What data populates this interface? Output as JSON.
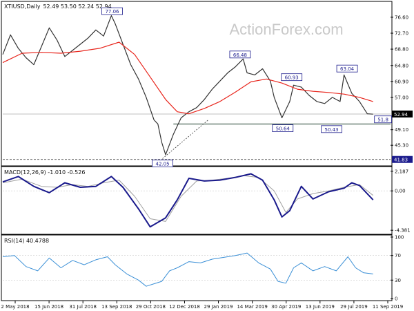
{
  "chart_data": [
    {
      "type": "line",
      "panel": "price",
      "title": "XTIUSD,Daily",
      "ohlc_header": "52.49 53.50 52.24 52.94",
      "ylim": [
        40.6,
        79.8
      ],
      "y_ticks": [
        {
          "value": 76.6,
          "label": "76.60"
        },
        {
          "value": 72.7,
          "label": "72.70"
        },
        {
          "value": 68.8,
          "label": "68.80"
        },
        {
          "value": 64.8,
          "label": "64.80"
        },
        {
          "value": 60.9,
          "label": "60.90"
        },
        {
          "value": 57.0,
          "label": "57.00"
        },
        {
          "value": 49.1,
          "label": "49.10"
        },
        {
          "value": 45.3,
          "label": "45.30"
        }
      ],
      "current_price": {
        "value": 52.94,
        "label": "52.94"
      },
      "support_level": {
        "value": 41.83,
        "label": "41.83"
      },
      "annotations": [
        {
          "label": "77.06",
          "x": 0.282,
          "y": 77.06
        },
        {
          "label": "66.48",
          "x": 0.612,
          "y": 66.48
        },
        {
          "label": "60.93",
          "x": 0.745,
          "y": 60.93
        },
        {
          "label": "63.04",
          "x": 0.888,
          "y": 63.04
        },
        {
          "label": "50.64",
          "x": 0.722,
          "y": 50.64
        },
        {
          "label": "50.43",
          "x": 0.848,
          "y": 50.43
        },
        {
          "label": "42.05",
          "x": 0.412,
          "y": 42.05
        },
        {
          "label": "51.8",
          "x": 0.955,
          "y": 51.8
        }
      ],
      "series": [
        {
          "kind": "price",
          "color": "#333333",
          "x": [
            0.0,
            0.02,
            0.04,
            0.06,
            0.08,
            0.1,
            0.12,
            0.14,
            0.16,
            0.18,
            0.2,
            0.22,
            0.24,
            0.26,
            0.28,
            0.29,
            0.31,
            0.33,
            0.35,
            0.37,
            0.39,
            0.4,
            0.41,
            0.42,
            0.44,
            0.46,
            0.48,
            0.5,
            0.52,
            0.54,
            0.56,
            0.58,
            0.6,
            0.62,
            0.63,
            0.65,
            0.67,
            0.69,
            0.7,
            0.72,
            0.74,
            0.75,
            0.77,
            0.79,
            0.81,
            0.83,
            0.85,
            0.87,
            0.88,
            0.9,
            0.92,
            0.94,
            0.955
          ],
          "values": [
            67.5,
            72.3,
            69.0,
            66.7,
            65.0,
            69.5,
            74.0,
            71.0,
            67.0,
            68.5,
            70.0,
            71.5,
            73.5,
            72.0,
            77.0,
            75.0,
            70.0,
            65.0,
            61.5,
            57.0,
            51.5,
            50.5,
            46.0,
            43.0,
            48.0,
            52.0,
            53.5,
            54.5,
            56.5,
            59.0,
            61.0,
            63.0,
            64.5,
            66.4,
            63.0,
            62.5,
            64.0,
            61.0,
            57.0,
            52.0,
            56.0,
            60.0,
            59.5,
            57.5,
            56.0,
            55.5,
            57.0,
            56.0,
            62.5,
            58.0,
            56.0,
            53.0,
            52.9
          ]
        },
        {
          "kind": "moving-average",
          "color": "#e8251c",
          "x": [
            0.0,
            0.05,
            0.1,
            0.15,
            0.2,
            0.25,
            0.3,
            0.34,
            0.38,
            0.42,
            0.45,
            0.48,
            0.52,
            0.56,
            0.6,
            0.64,
            0.68,
            0.72,
            0.76,
            0.8,
            0.84,
            0.88,
            0.92,
            0.955
          ],
          "values": [
            65.5,
            67.8,
            68.0,
            67.8,
            68.3,
            69.0,
            70.5,
            67.5,
            62.0,
            56.5,
            53.5,
            53.0,
            54.3,
            56.0,
            58.3,
            60.8,
            61.5,
            60.5,
            59.0,
            58.5,
            58.2,
            57.8,
            57.0,
            56.0
          ]
        }
      ]
    },
    {
      "type": "line",
      "panel": "macd",
      "title": "MACD(12,26,9) -1.010 -0.526",
      "ylim": [
        -4.6,
        2.4
      ],
      "y_ticks": [
        {
          "value": 2.187,
          "label": "2.187"
        },
        {
          "value": 0.0,
          "label": "0.00"
        },
        {
          "value": -4.381,
          "label": "-4.381"
        }
      ],
      "series": [
        {
          "kind": "macd",
          "color": "#1a1a8c",
          "x": [
            0.0,
            0.04,
            0.08,
            0.12,
            0.16,
            0.2,
            0.24,
            0.28,
            0.31,
            0.35,
            0.38,
            0.42,
            0.45,
            0.48,
            0.52,
            0.56,
            0.6,
            0.64,
            0.67,
            0.7,
            0.72,
            0.74,
            0.77,
            0.8,
            0.84,
            0.88,
            0.9,
            0.92,
            0.955
          ],
          "values": [
            1.0,
            1.6,
            0.5,
            -0.2,
            0.9,
            0.4,
            0.5,
            1.6,
            0.4,
            -2.0,
            -4.0,
            -3.0,
            -1.0,
            1.4,
            1.1,
            1.2,
            1.5,
            1.9,
            1.2,
            -1.0,
            -2.9,
            -2.2,
            0.5,
            -0.9,
            -0.1,
            0.3,
            0.9,
            0.6,
            -1.0
          ]
        },
        {
          "kind": "signal",
          "color": "#a0a0a0",
          "x": [
            0.0,
            0.05,
            0.1,
            0.14,
            0.18,
            0.22,
            0.26,
            0.3,
            0.34,
            0.38,
            0.42,
            0.46,
            0.5,
            0.54,
            0.58,
            0.62,
            0.66,
            0.7,
            0.73,
            0.76,
            0.8,
            0.84,
            0.88,
            0.92,
            0.955
          ],
          "values": [
            0.9,
            1.3,
            0.5,
            0.4,
            0.7,
            0.5,
            0.9,
            1.2,
            -0.6,
            -3.1,
            -3.4,
            -0.6,
            1.1,
            1.2,
            1.4,
            1.7,
            1.5,
            0.0,
            -2.4,
            -0.9,
            -0.3,
            0.0,
            0.4,
            0.7,
            -0.5
          ]
        }
      ]
    },
    {
      "type": "line",
      "panel": "rsi",
      "title": "RSI(14) 40.4788",
      "ylim": [
        0,
        100
      ],
      "y_ticks": [
        {
          "value": 100,
          "label": "100"
        },
        {
          "value": 70,
          "label": "70"
        },
        {
          "value": 30,
          "label": "30"
        },
        {
          "value": 0,
          "label": "0"
        }
      ],
      "series": [
        {
          "kind": "rsi",
          "color": "#3a8fd6",
          "x": [
            0.0,
            0.03,
            0.06,
            0.09,
            0.12,
            0.15,
            0.18,
            0.21,
            0.24,
            0.27,
            0.29,
            0.32,
            0.35,
            0.37,
            0.39,
            0.41,
            0.43,
            0.45,
            0.48,
            0.51,
            0.54,
            0.57,
            0.6,
            0.63,
            0.66,
            0.69,
            0.71,
            0.73,
            0.75,
            0.77,
            0.8,
            0.83,
            0.86,
            0.89,
            0.91,
            0.93,
            0.955
          ],
          "values": [
            68,
            70,
            52,
            45,
            66,
            50,
            62,
            55,
            63,
            68,
            55,
            40,
            30,
            20,
            24,
            28,
            45,
            50,
            60,
            58,
            64,
            67,
            70,
            74,
            58,
            48,
            28,
            25,
            50,
            58,
            45,
            52,
            45,
            68,
            50,
            42,
            40
          ]
        }
      ]
    }
  ],
  "x_axis_labels": [
    "2 May 2018",
    "15 Jun 2018",
    "31 Jul 2018",
    "13 Sep 2018",
    "29 Oct 2018",
    "12 Dec 2018",
    "29 Jan 2019",
    "14 Mar 2019",
    "30 Apr 2019",
    "13 Jun 2019",
    "29 Jul 2019",
    "11 Sep 2019"
  ],
  "watermark": "ActionForex.com",
  "colors": {
    "price": "#333333",
    "ma": "#e8251c",
    "macd": "#1a1a8c",
    "signal": "#a0a0a0",
    "rsi": "#3a8fd6",
    "annotation_text": "#1a1a8c",
    "grid": "#cccccc"
  }
}
